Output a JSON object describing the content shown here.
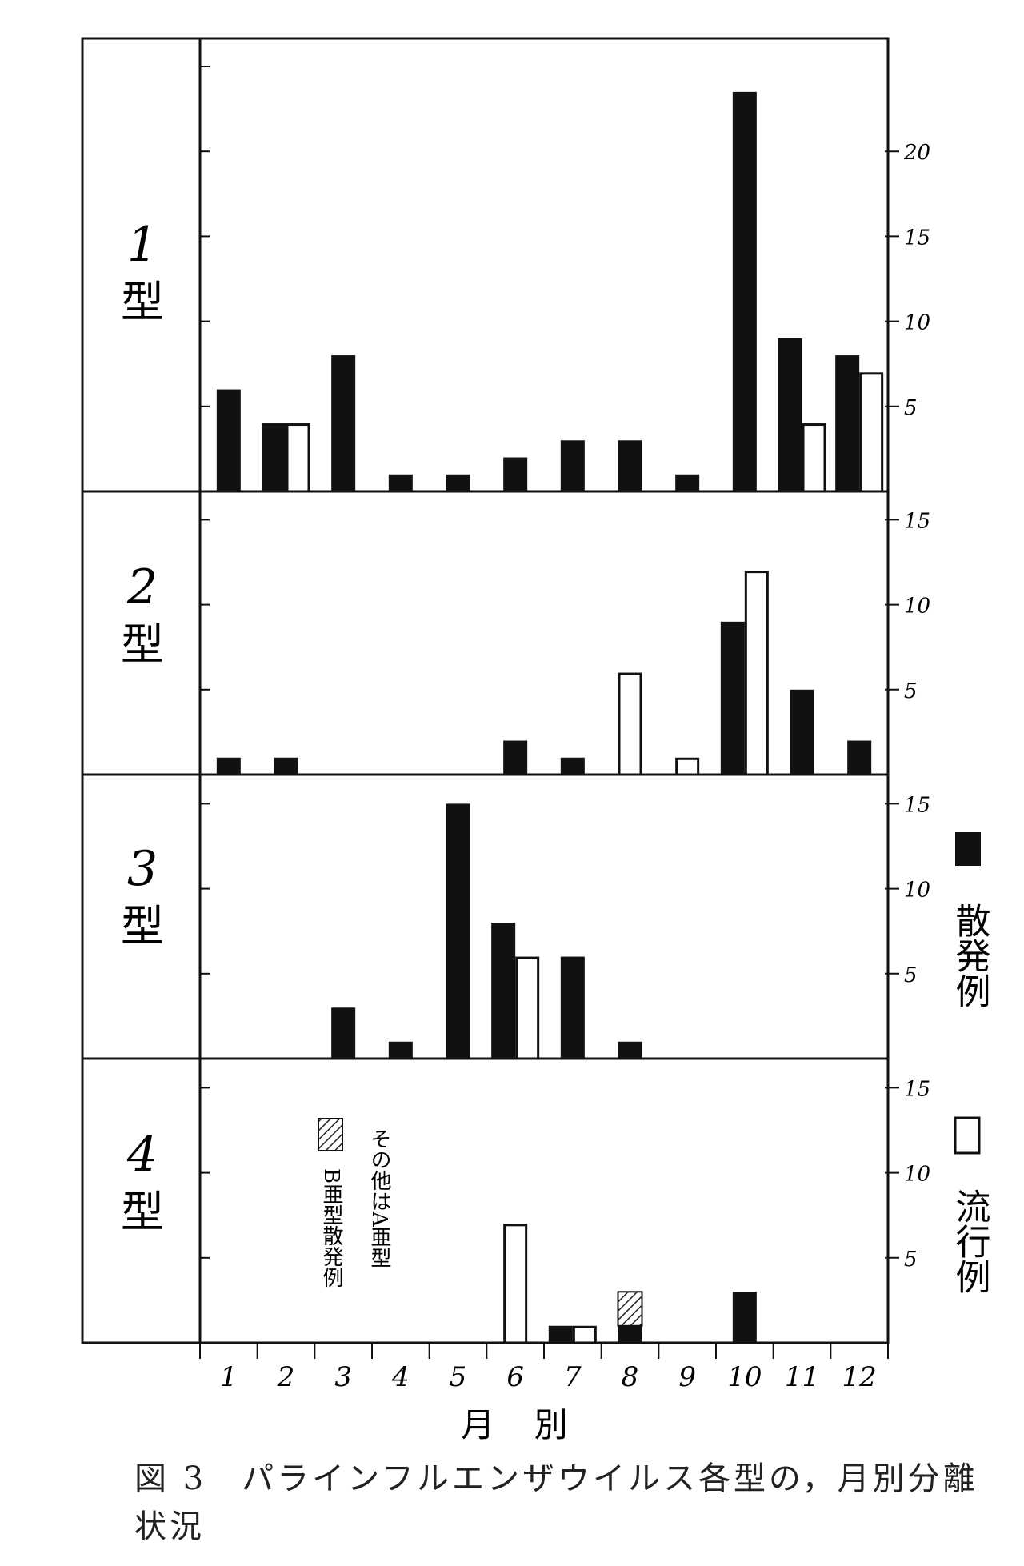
{
  "caption": "図 3　パラインフルエンザウイルス各型の，月別分離状況",
  "xaxis_title": "月 別",
  "legend": {
    "sporadic_label": "散発例",
    "epidemic_label": "流行例",
    "sporadic_color": "#111111",
    "epidemic_color": "#ffffff"
  },
  "annotation": {
    "hatched_label": "B亜型散発例",
    "other_label": "その他はA亜型"
  },
  "chart_data": [
    {
      "type": "bar",
      "panel_label": "1型",
      "categories": [
        "1",
        "2",
        "3",
        "4",
        "5",
        "6",
        "7",
        "8",
        "9",
        "10",
        "11",
        "12"
      ],
      "series": [
        {
          "name": "散発例",
          "values": [
            6,
            4,
            8,
            1,
            1,
            2,
            3,
            3,
            1,
            23.5,
            9,
            8
          ]
        },
        {
          "name": "流行例",
          "values": [
            0,
            4,
            0,
            0,
            0,
            0,
            0,
            0,
            0,
            0,
            4,
            7
          ]
        }
      ],
      "ylim": [
        0,
        26
      ],
      "yticks": [
        5,
        10,
        15,
        20
      ],
      "ytick_labels": [
        "5",
        "10",
        "15",
        "20"
      ]
    },
    {
      "type": "bar",
      "panel_label": "2型",
      "categories": [
        "1",
        "2",
        "3",
        "4",
        "5",
        "6",
        "7",
        "8",
        "9",
        "10",
        "11",
        "12"
      ],
      "series": [
        {
          "name": "散発例",
          "values": [
            1,
            1,
            0,
            0,
            0,
            2,
            1,
            0,
            0,
            9,
            5,
            2
          ]
        },
        {
          "name": "流行例",
          "values": [
            0,
            0,
            0,
            0,
            0,
            0,
            0,
            6,
            1,
            12,
            0,
            0
          ]
        }
      ],
      "ylim": [
        0,
        16
      ],
      "yticks": [
        5,
        10,
        15
      ],
      "ytick_labels": [
        "5",
        "10",
        "15"
      ]
    },
    {
      "type": "bar",
      "panel_label": "3型",
      "categories": [
        "1",
        "2",
        "3",
        "4",
        "5",
        "6",
        "7",
        "8",
        "9",
        "10",
        "11",
        "12"
      ],
      "series": [
        {
          "name": "散発例",
          "values": [
            0,
            0,
            3,
            1,
            15,
            8,
            6,
            1,
            0,
            0,
            0,
            0
          ]
        },
        {
          "name": "流行例",
          "values": [
            0,
            0,
            0,
            0,
            0,
            6,
            0,
            0,
            0,
            0,
            0,
            0
          ]
        }
      ],
      "ylim": [
        0,
        16
      ],
      "yticks": [
        5,
        10,
        15
      ],
      "ytick_labels": [
        "5",
        "10",
        "15"
      ]
    },
    {
      "type": "bar",
      "panel_label": "4型",
      "categories": [
        "1",
        "2",
        "3",
        "4",
        "5",
        "6",
        "7",
        "8",
        "9",
        "10",
        "11",
        "12"
      ],
      "series": [
        {
          "name": "散発例",
          "values": [
            0,
            0,
            0,
            0,
            0,
            0,
            1,
            1,
            0,
            3,
            0,
            0
          ]
        },
        {
          "name": "流行例",
          "values": [
            0,
            0,
            0,
            0,
            0,
            7,
            1,
            0,
            0,
            0,
            0,
            0
          ]
        },
        {
          "name": "B亜型散発例",
          "values": [
            0,
            0,
            0,
            0,
            0,
            0,
            0,
            2,
            0,
            0,
            0,
            0
          ]
        }
      ],
      "ylim": [
        0,
        16
      ],
      "yticks": [
        5,
        10,
        15
      ],
      "ytick_labels": [
        "5",
        "10",
        "15"
      ]
    }
  ]
}
